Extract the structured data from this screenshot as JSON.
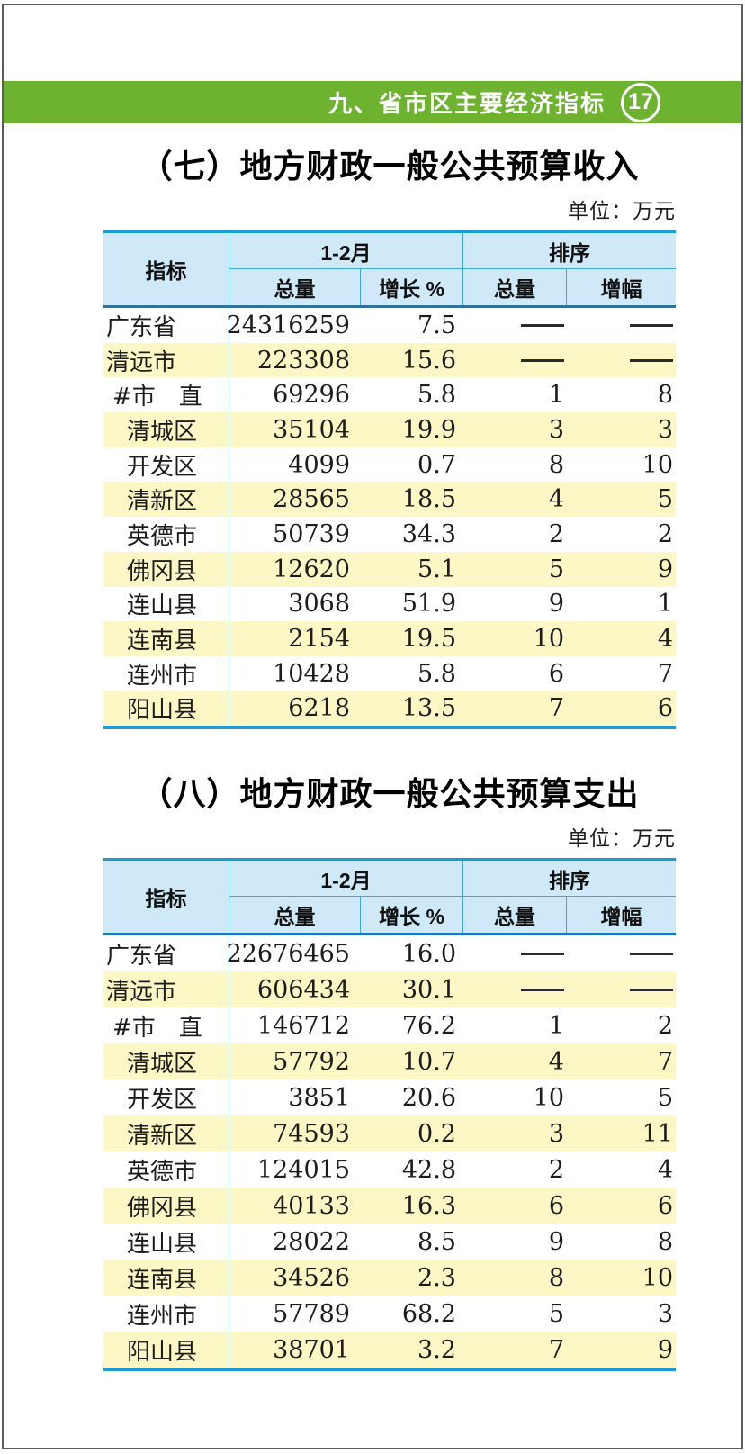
{
  "header": {
    "title": "九、省市区主要经济指标",
    "page_number": "17"
  },
  "sections": [
    {
      "title": "（七）地方财政一般公共预算收入",
      "unit_label": "单位：万元",
      "table": {
        "header": {
          "indicator": "指标",
          "period_group": "1-2月",
          "rank_group": "排序",
          "sub": [
            "总量",
            "增长 %",
            "总量",
            "增幅"
          ]
        },
        "rows": [
          {
            "label": "广东省",
            "indent": 0,
            "total": "24316259",
            "growth": "7.5",
            "rank_total": "——",
            "rank_growth": "——"
          },
          {
            "label": "清远市",
            "indent": 0,
            "total": "223308",
            "growth": "15.6",
            "rank_total": "——",
            "rank_growth": "——"
          },
          {
            "label": "#市　直",
            "indent": 1,
            "total": "69296",
            "growth": "5.8",
            "rank_total": "1",
            "rank_growth": "8"
          },
          {
            "label": "清城区",
            "indent": 2,
            "total": "35104",
            "growth": "19.9",
            "rank_total": "3",
            "rank_growth": "3"
          },
          {
            "label": "开发区",
            "indent": 2,
            "total": "4099",
            "growth": "0.7",
            "rank_total": "8",
            "rank_growth": "10"
          },
          {
            "label": "清新区",
            "indent": 2,
            "total": "28565",
            "growth": "18.5",
            "rank_total": "4",
            "rank_growth": "5"
          },
          {
            "label": "英德市",
            "indent": 2,
            "total": "50739",
            "growth": "34.3",
            "rank_total": "2",
            "rank_growth": "2"
          },
          {
            "label": "佛冈县",
            "indent": 2,
            "total": "12620",
            "growth": "5.1",
            "rank_total": "5",
            "rank_growth": "9"
          },
          {
            "label": "连山县",
            "indent": 2,
            "total": "3068",
            "growth": "51.9",
            "rank_total": "9",
            "rank_growth": "1"
          },
          {
            "label": "连南县",
            "indent": 2,
            "total": "2154",
            "growth": "19.5",
            "rank_total": "10",
            "rank_growth": "4"
          },
          {
            "label": "连州市",
            "indent": 2,
            "total": "10428",
            "growth": "5.8",
            "rank_total": "6",
            "rank_growth": "7"
          },
          {
            "label": "阳山县",
            "indent": 2,
            "total": "6218",
            "growth": "13.5",
            "rank_total": "7",
            "rank_growth": "6"
          }
        ]
      }
    },
    {
      "title": "（八）地方财政一般公共预算支出",
      "unit_label": "单位：万元",
      "table": {
        "header": {
          "indicator": "指标",
          "period_group": "1-2月",
          "rank_group": "排序",
          "sub": [
            "总量",
            "增长 %",
            "总量",
            "增幅"
          ]
        },
        "rows": [
          {
            "label": "广东省",
            "indent": 0,
            "total": "22676465",
            "growth": "16.0",
            "rank_total": "——",
            "rank_growth": "——"
          },
          {
            "label": "清远市",
            "indent": 0,
            "total": "606434",
            "growth": "30.1",
            "rank_total": "——",
            "rank_growth": "——"
          },
          {
            "label": "#市　直",
            "indent": 1,
            "total": "146712",
            "growth": "76.2",
            "rank_total": "1",
            "rank_growth": "2"
          },
          {
            "label": "清城区",
            "indent": 2,
            "total": "57792",
            "growth": "10.7",
            "rank_total": "4",
            "rank_growth": "7"
          },
          {
            "label": "开发区",
            "indent": 2,
            "total": "3851",
            "growth": "20.6",
            "rank_total": "10",
            "rank_growth": "5"
          },
          {
            "label": "清新区",
            "indent": 2,
            "total": "74593",
            "growth": "0.2",
            "rank_total": "3",
            "rank_growth": "11"
          },
          {
            "label": "英德市",
            "indent": 2,
            "total": "124015",
            "growth": "42.8",
            "rank_total": "2",
            "rank_growth": "4"
          },
          {
            "label": "佛冈县",
            "indent": 2,
            "total": "40133",
            "growth": "16.3",
            "rank_total": "6",
            "rank_growth": "6"
          },
          {
            "label": "连山县",
            "indent": 2,
            "total": "28022",
            "growth": "8.5",
            "rank_total": "9",
            "rank_growth": "8"
          },
          {
            "label": "连南县",
            "indent": 2,
            "total": "34526",
            "growth": "2.3",
            "rank_total": "8",
            "rank_growth": "10"
          },
          {
            "label": "连州市",
            "indent": 2,
            "total": "57789",
            "growth": "68.2",
            "rank_total": "5",
            "rank_growth": "3"
          },
          {
            "label": "阳山县",
            "indent": 2,
            "total": "38701",
            "growth": "3.2",
            "rank_total": "7",
            "rank_growth": "9"
          }
        ]
      }
    }
  ],
  "colors": {
    "accent_green": "#6db32f",
    "table_line_blue": "#1b9cd8",
    "header_bg_blue": "#cfe9f8",
    "row_alt_yellow": "#fdf7c5"
  }
}
